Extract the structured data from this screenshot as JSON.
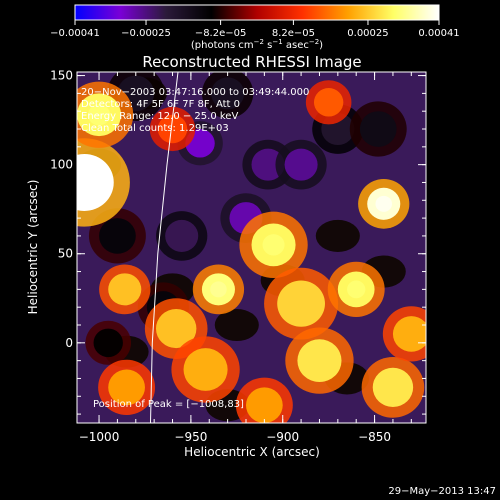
{
  "chart_data": {
    "type": "heatmap",
    "title": "Reconstructed RHESSI Image",
    "xlabel": "Heliocentric X (arcsec)",
    "ylabel": "Heliocentric Y (arcsec)",
    "xlim": [
      -1012,
      -822
    ],
    "ylim": [
      -45,
      152
    ],
    "x_ticks": [
      -1000,
      -950,
      -900,
      -850
    ],
    "x_tick_labels": [
      "−1000",
      "−950",
      "−900",
      "−850"
    ],
    "y_ticks": [
      0,
      50,
      100,
      150
    ],
    "y_tick_labels": [
      "0",
      "50",
      "100",
      "150"
    ],
    "colorbar": {
      "ticks": [
        -0.00041,
        -0.00025,
        -8.2e-05,
        8.2e-05,
        0.00025,
        0.00041
      ],
      "tick_labels": [
        "−0.00041",
        "−0.00025",
        "−8.2e−05",
        "8.2e−05",
        "0.00025",
        "0.00041"
      ],
      "range": [
        -0.00041,
        0.00041
      ],
      "colors": [
        "#0000ff",
        "#7a00d6",
        "#2b1a3a",
        "#000000",
        "#b00000",
        "#ff3000",
        "#ffa000",
        "#ffff66",
        "#ffffff"
      ]
    },
    "annotations": [
      "20−Nov−2003 03:47:16.000 to 03:49:44.000",
      "Detectors: 4F 5F 6F 7F 8F, Att 0",
      "Energy Range: 12.0 − 25.0 keV",
      "Clean    Total counts: 1.29E+03"
    ],
    "peak_label": "Position of Peak = [−1008,83]",
    "peak": {
      "x": -1008,
      "y": 83
    },
    "limb_line": [
      [
        -972,
        -45
      ],
      [
        -971,
        0
      ],
      [
        -968,
        50
      ],
      [
        -963,
        100
      ],
      [
        -957,
        152
      ]
    ],
    "hot_spots": [
      {
        "x": -1008,
        "y": 90,
        "v": 0.00041,
        "r": 16
      },
      {
        "x": -1000,
        "y": 128,
        "v": 0.0003,
        "r": 12
      },
      {
        "x": -986,
        "y": 30,
        "v": 0.00024,
        "r": 9
      },
      {
        "x": -985,
        "y": -25,
        "v": 0.0002,
        "r": 10
      },
      {
        "x": -958,
        "y": 8,
        "v": 0.00024,
        "r": 11
      },
      {
        "x": -942,
        "y": -15,
        "v": 0.00022,
        "r": 12
      },
      {
        "x": -935,
        "y": 30,
        "v": 0.00032,
        "r": 9
      },
      {
        "x": -905,
        "y": 55,
        "v": 0.0003,
        "r": 12
      },
      {
        "x": -890,
        "y": 22,
        "v": 0.00026,
        "r": 13
      },
      {
        "x": -880,
        "y": -10,
        "v": 0.00028,
        "r": 12
      },
      {
        "x": -860,
        "y": 30,
        "v": 0.0003,
        "r": 10
      },
      {
        "x": -845,
        "y": 78,
        "v": 0.00038,
        "r": 9
      },
      {
        "x": -840,
        "y": -25,
        "v": 0.00028,
        "r": 11
      },
      {
        "x": -830,
        "y": 5,
        "v": 0.00022,
        "r": 10
      },
      {
        "x": -910,
        "y": -35,
        "v": 0.0002,
        "r": 10
      },
      {
        "x": -960,
        "y": 120,
        "v": 0.00012,
        "r": 8
      },
      {
        "x": -875,
        "y": 135,
        "v": 0.00014,
        "r": 8
      }
    ],
    "cold_spots": [
      {
        "x": -945,
        "y": 112,
        "v": -0.0003,
        "r": 8
      },
      {
        "x": -920,
        "y": 70,
        "v": -0.00028,
        "r": 9
      },
      {
        "x": -908,
        "y": 100,
        "v": -0.00025,
        "r": 9
      },
      {
        "x": -890,
        "y": 100,
        "v": -0.00026,
        "r": 9
      },
      {
        "x": -955,
        "y": 60,
        "v": -0.00022,
        "r": 9
      },
      {
        "x": -870,
        "y": 120,
        "v": -0.00018,
        "r": 9
      },
      {
        "x": -980,
        "y": 140,
        "v": -0.00016,
        "r": 10
      },
      {
        "x": -930,
        "y": 140,
        "v": -0.00016,
        "r": 9
      },
      {
        "x": -848,
        "y": 120,
        "v": -0.00014,
        "r": 10
      },
      {
        "x": -990,
        "y": 60,
        "v": -0.00012,
        "r": 10
      },
      {
        "x": -965,
        "y": 20,
        "v": -0.00012,
        "r": 9
      },
      {
        "x": -995,
        "y": 0,
        "v": -0.0001,
        "r": 8
      }
    ]
  },
  "footer_date": "29−May−2013 13:47",
  "colorbar_unit": "(photons cm^-2 s^-1 asec^-2)"
}
